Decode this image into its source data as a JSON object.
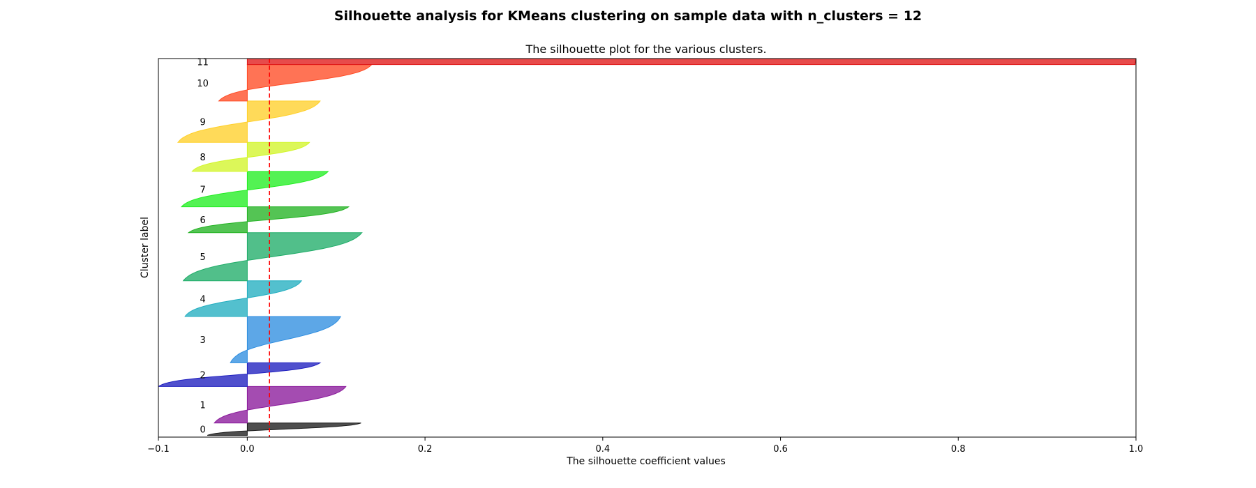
{
  "figure": {
    "suptitle": "Silhouette analysis for KMeans clustering on sample data with n_clusters = 12"
  },
  "chart_data": {
    "type": "area",
    "title": "The silhouette plot for the various clusters.",
    "xlabel": "The silhouette coefficient values",
    "ylabel": "Cluster label",
    "xlim": [
      -0.1,
      1.0
    ],
    "ylim": [
      0,
      1070
    ],
    "xticks": [
      -0.1,
      0.0,
      0.2,
      0.4,
      0.6,
      0.8,
      1.0
    ],
    "xtick_labels": [
      "−0.1",
      "0.0",
      "0.2",
      "0.4",
      "0.6",
      "0.8",
      "1.0"
    ],
    "yticks": [],
    "grid": false,
    "average_silhouette_score": 0.025,
    "average_line_color": "#ff0000",
    "clusters": [
      {
        "label": "0",
        "lower": 5,
        "size": 35,
        "min": -0.045,
        "max": 0.128,
        "color": "#1c1c1c"
      },
      {
        "label": "1",
        "lower": 40,
        "size": 103,
        "min": -0.037,
        "max": 0.111,
        "color": "#8a1a9b"
      },
      {
        "label": "2",
        "lower": 143,
        "size": 67,
        "min": -0.1,
        "max": 0.082,
        "color": "#1f1fbf"
      },
      {
        "label": "3",
        "lower": 210,
        "size": 131,
        "min": -0.019,
        "max": 0.105,
        "color": "#2f8ee0"
      },
      {
        "label": "4",
        "lower": 341,
        "size": 101,
        "min": -0.07,
        "max": 0.061,
        "color": "#23aec0"
      },
      {
        "label": "5",
        "lower": 442,
        "size": 136,
        "min": -0.072,
        "max": 0.129,
        "color": "#20ad69"
      },
      {
        "label": "6",
        "lower": 578,
        "size": 73,
        "min": -0.066,
        "max": 0.114,
        "color": "#24b324"
      },
      {
        "label": "7",
        "lower": 651,
        "size": 100,
        "min": -0.074,
        "max": 0.091,
        "color": "#22ee22"
      },
      {
        "label": "8",
        "lower": 751,
        "size": 82,
        "min": -0.062,
        "max": 0.07,
        "color": "#d2f52a"
      },
      {
        "label": "9",
        "lower": 833,
        "size": 117,
        "min": -0.078,
        "max": 0.082,
        "color": "#ffd02a"
      },
      {
        "label": "10",
        "lower": 950,
        "size": 103,
        "min": -0.032,
        "max": 0.14,
        "color": "#ff4b25"
      },
      {
        "label": "11",
        "lower": 1053,
        "size": 17,
        "min": 0.999,
        "max": 1.0,
        "color": "#e01818"
      }
    ]
  }
}
